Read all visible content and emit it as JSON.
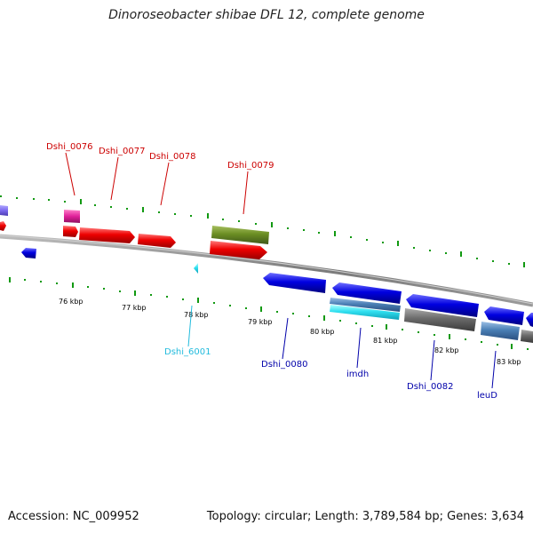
{
  "title": "Dinoroseobacter shibae DFL 12, complete genome",
  "footer": {
    "accession": "Accession: NC_009952",
    "topology": "Topology: circular; Length: 3,789,584 bp; Genes: 3,634"
  },
  "colors": {
    "red": "#e00000",
    "dark_red_label": "#cc0000",
    "blue": "#0000dd",
    "dark_blue_label": "#0000aa",
    "cyan": "#33ddee",
    "cyan_label": "#22bbdd",
    "olive": "#6b8e23",
    "magenta": "#e0209a",
    "gray": "#666666",
    "steelblue": "#4a7fb5",
    "purple": "#7b68ee",
    "tick_green": "#119911",
    "backbone": "#888888"
  },
  "scale_labels": [
    "76 kbp",
    "77 kbp",
    "78 kbp",
    "79 kbp",
    "80 kbp",
    "81 kbp",
    "82 kbp",
    "83 kbp"
  ],
  "gene_labels": [
    {
      "text": "Dshi_0076",
      "color": "red"
    },
    {
      "text": "Dshi_0077",
      "color": "red"
    },
    {
      "text": "Dshi_0078",
      "color": "red"
    },
    {
      "text": "Dshi_0079",
      "color": "red"
    },
    {
      "text": "Dshi_6001",
      "color": "cyan"
    },
    {
      "text": "Dshi_0080",
      "color": "blue"
    },
    {
      "text": "imdh",
      "color": "blue"
    },
    {
      "text": "Dshi_0082",
      "color": "blue"
    },
    {
      "text": "leuD",
      "color": "blue"
    }
  ]
}
